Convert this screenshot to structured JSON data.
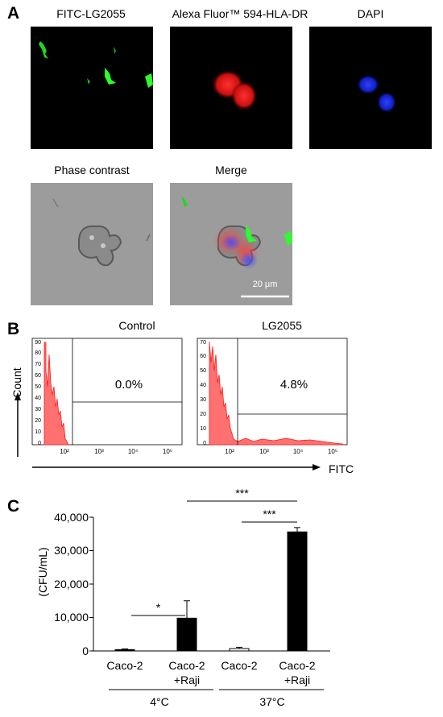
{
  "panel_a": {
    "letter": "A",
    "images": [
      {
        "title": "FITC-LG2055",
        "channel": "green"
      },
      {
        "title": "Alexa Fluor™ 594-HLA-DR",
        "channel": "red"
      },
      {
        "title": "DAPI",
        "channel": "blue"
      },
      {
        "title": "Phase contrast",
        "channel": "brightfield"
      },
      {
        "title": "Merge",
        "channel": "merge"
      }
    ],
    "scale_bar_label": "20 μm"
  },
  "panel_b": {
    "letter": "B",
    "y_axis_label": "Count",
    "x_axis_label": "FITC",
    "colors": {
      "histogram": "#ff2a2a"
    },
    "histograms": [
      {
        "title": "Control",
        "gate_percent": "0.0%",
        "y_ticks": [
          "0",
          "10",
          "20",
          "30",
          "40",
          "50",
          "60",
          "70",
          "80",
          "90"
        ],
        "x_ticks": [
          "10²",
          "10³",
          "10⁴",
          "10⁵"
        ]
      },
      {
        "title": "LG2055",
        "gate_percent": "4.8%",
        "y_ticks": [
          "0",
          "10",
          "20",
          "30",
          "40",
          "50",
          "60",
          "70"
        ],
        "x_ticks": [
          "10²",
          "10³",
          "10⁴",
          "10⁵"
        ]
      }
    ]
  },
  "panel_c": {
    "letter": "C",
    "y_label": "(CFU/mL)",
    "y_ticks": [
      "0",
      "10,000",
      "20,000",
      "30,000",
      "40,000"
    ],
    "group_labels": [
      "4°C",
      "37°C"
    ],
    "category_labels": [
      [
        "Caco-2"
      ],
      [
        "Caco-2",
        "+Raji"
      ],
      [
        "Caco-2"
      ],
      [
        "Caco-2",
        "+Raji"
      ]
    ],
    "significance": [
      "*",
      "***",
      "***"
    ]
  },
  "chart_data": {
    "type": "bar",
    "categories": [
      "Caco-2 (4°C)",
      "Caco-2 +Raji (4°C)",
      "Caco-2 (37°C)",
      "Caco-2 +Raji (37°C)"
    ],
    "values": [
      400,
      9800,
      700,
      35600
    ],
    "errors": [
      200,
      5200,
      400,
      1300
    ],
    "bar_fill": [
      "black",
      "black",
      "white",
      "black"
    ],
    "ylabel": "(CFU/mL)",
    "ylim": [
      0,
      40000
    ],
    "comparisons": [
      {
        "from": 0,
        "to": 1,
        "label": "*"
      },
      {
        "from": 1,
        "to": 3,
        "label": "***"
      },
      {
        "from": 2,
        "to": 3,
        "label": "***"
      }
    ]
  }
}
